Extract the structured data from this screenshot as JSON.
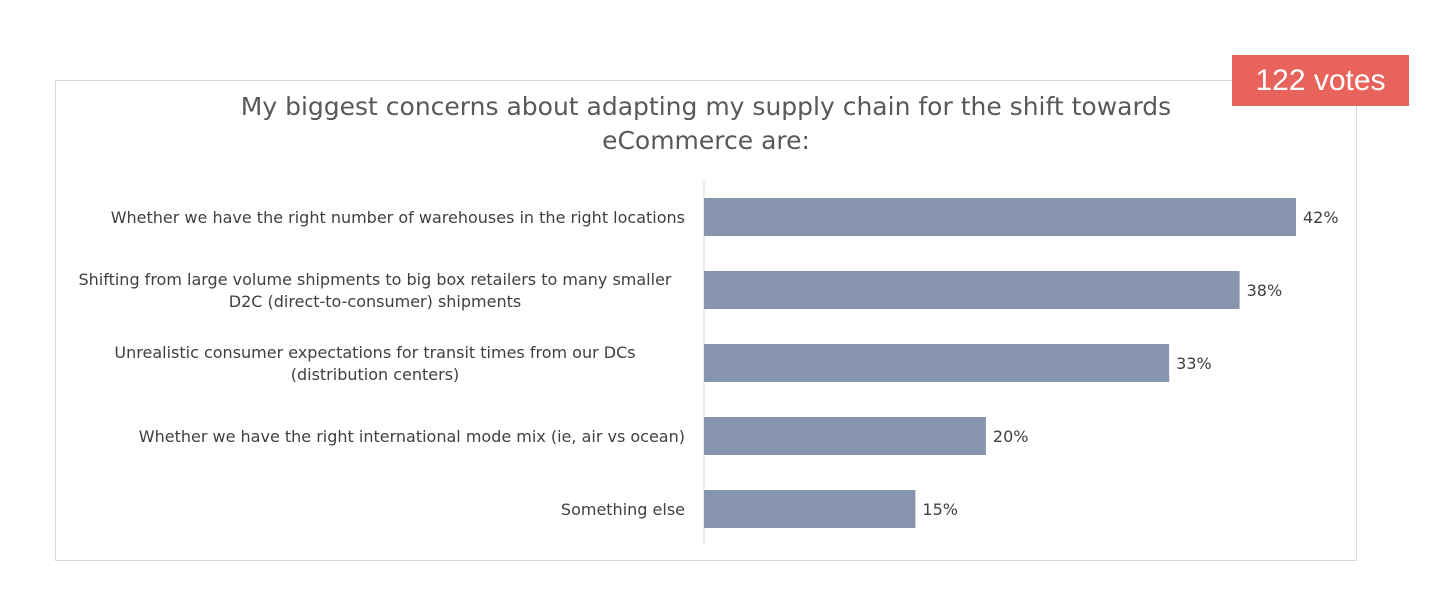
{
  "badge": {
    "votes": "122 votes"
  },
  "colors": {
    "bar": "#8796ae",
    "badge": "#e8635c",
    "text": "#404040",
    "title": "#595959"
  },
  "chart_data": {
    "type": "bar",
    "orientation": "horizontal",
    "title_lines": [
      "My biggest concerns about adapting my supply chain for the shift towards",
      "eCommerce are:"
    ],
    "categories": [
      [
        "Whether we have the right number of warehouses in the right locations"
      ],
      [
        "Shifting from large volume shipments to big box retailers to many smaller",
        "D2C (direct-to-consumer) shipments"
      ],
      [
        "Unrealistic consumer expectations for transit times from our DCs",
        "(distribution centers)"
      ],
      [
        "Whether we have the right international mode mix (ie, air vs ocean)"
      ],
      [
        "Something else"
      ]
    ],
    "values": [
      42,
      38,
      33,
      20,
      15
    ],
    "value_labels": [
      "42%",
      "38%",
      "33%",
      "20%",
      "15%"
    ],
    "xlim": [
      0,
      42
    ],
    "grid": false,
    "legend": "none"
  }
}
